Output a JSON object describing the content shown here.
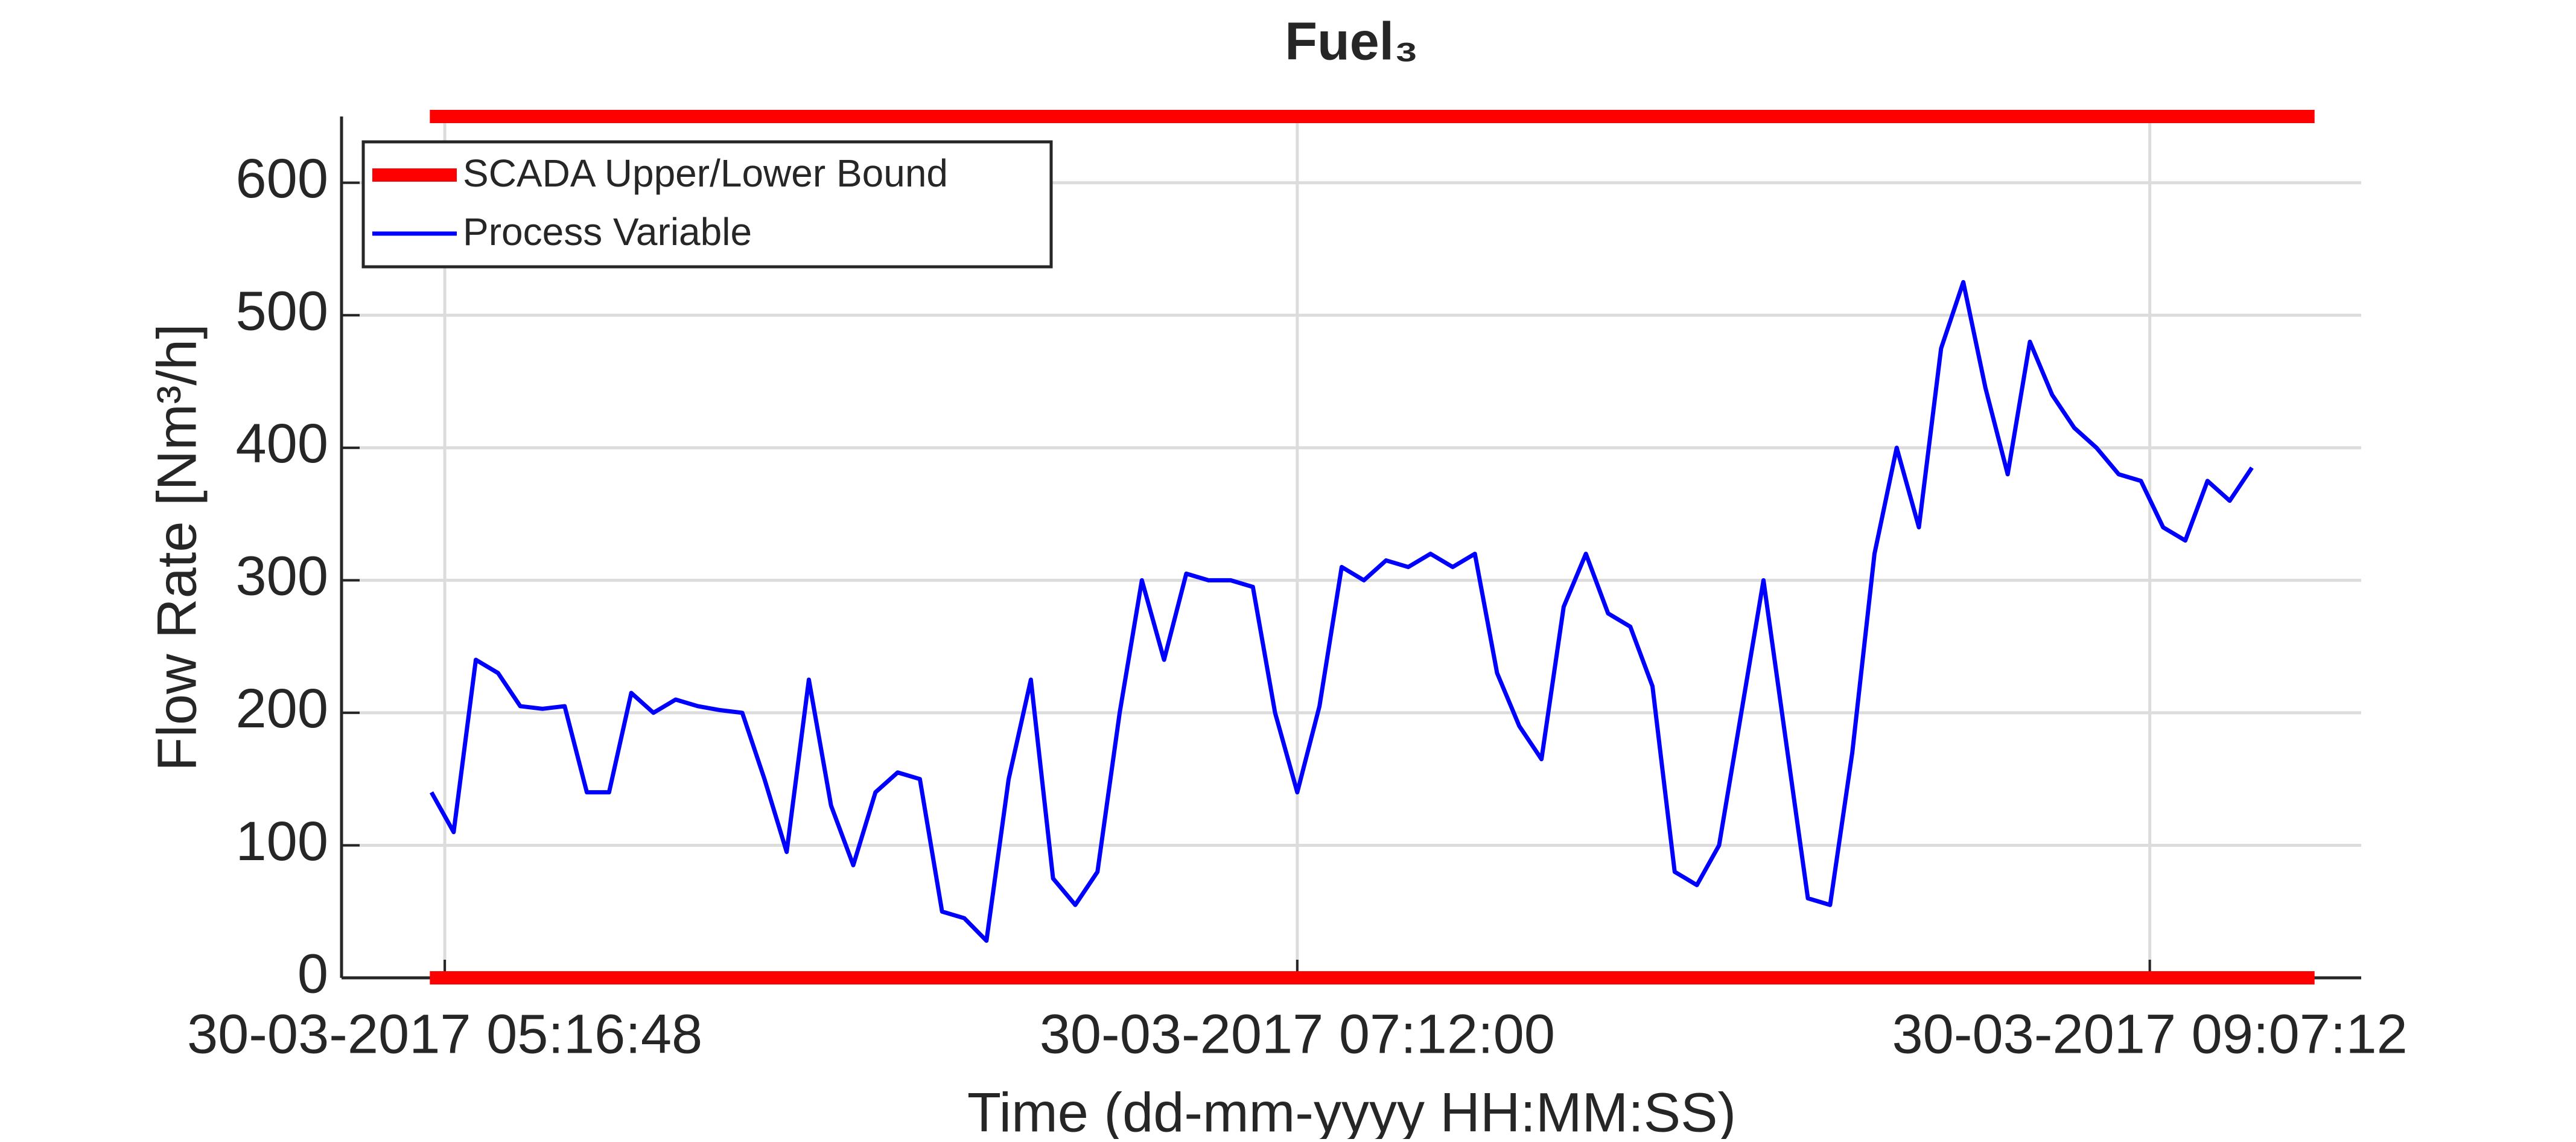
{
  "chart_data": {
    "type": "line",
    "title": "Fuel₃",
    "x_label": "Time (dd-mm-yyyy HH:MM:SS)",
    "y_label": "Flow Rate [Nm³/h]",
    "xlim": [
      "30-03-2017 05:02:51",
      "30-03-2017 09:35:46"
    ],
    "xticks": [
      "30-03-2017 05:16:48",
      "30-03-2017 07:12:00",
      "30-03-2017 09:07:12"
    ],
    "ylim": [
      0,
      650
    ],
    "yticks": [
      0,
      100,
      200,
      300,
      400,
      500,
      600
    ],
    "grid": true,
    "legend": "upper left",
    "bounds": {
      "name": "SCADA Upper/Lower Bound",
      "color": "#ff0000",
      "x": [
        "30-03-2017 05:14:47",
        "30-03-2017 09:29:28"
      ],
      "upper": 650,
      "lower": 0
    },
    "x": [
      "30-03-2017 05:15:00",
      "30-03-2017 05:18:00",
      "30-03-2017 05:21:00",
      "30-03-2017 05:24:00",
      "30-03-2017 05:27:00",
      "30-03-2017 05:30:00",
      "30-03-2017 05:33:00",
      "30-03-2017 05:36:00",
      "30-03-2017 05:39:00",
      "30-03-2017 05:42:00",
      "30-03-2017 05:45:00",
      "30-03-2017 05:48:00",
      "30-03-2017 05:51:00",
      "30-03-2017 05:54:00",
      "30-03-2017 05:57:00",
      "30-03-2017 06:00:00",
      "30-03-2017 06:03:00",
      "30-03-2017 06:06:00",
      "30-03-2017 06:09:00",
      "30-03-2017 06:12:00",
      "30-03-2017 06:15:00",
      "30-03-2017 06:18:00",
      "30-03-2017 06:21:00",
      "30-03-2017 06:24:00",
      "30-03-2017 06:27:00",
      "30-03-2017 06:30:00",
      "30-03-2017 06:33:00",
      "30-03-2017 06:36:00",
      "30-03-2017 06:39:00",
      "30-03-2017 06:42:00",
      "30-03-2017 06:45:00",
      "30-03-2017 06:48:00",
      "30-03-2017 06:51:00",
      "30-03-2017 06:54:00",
      "30-03-2017 06:57:00",
      "30-03-2017 07:00:00",
      "30-03-2017 07:03:00",
      "30-03-2017 07:06:00",
      "30-03-2017 07:09:00",
      "30-03-2017 07:12:00",
      "30-03-2017 07:15:00",
      "30-03-2017 07:18:00",
      "30-03-2017 07:21:00",
      "30-03-2017 07:24:00",
      "30-03-2017 07:27:00",
      "30-03-2017 07:30:00",
      "30-03-2017 07:33:00",
      "30-03-2017 07:36:00",
      "30-03-2017 07:39:00",
      "30-03-2017 07:42:00",
      "30-03-2017 07:45:00",
      "30-03-2017 07:48:00",
      "30-03-2017 07:51:00",
      "30-03-2017 07:54:00",
      "30-03-2017 07:57:00",
      "30-03-2017 08:00:00",
      "30-03-2017 08:03:00",
      "30-03-2017 08:06:00",
      "30-03-2017 08:09:00",
      "30-03-2017 08:12:00",
      "30-03-2017 08:15:00",
      "30-03-2017 08:18:00",
      "30-03-2017 08:21:00",
      "30-03-2017 08:24:00",
      "30-03-2017 08:27:00",
      "30-03-2017 08:30:00",
      "30-03-2017 08:33:00",
      "30-03-2017 08:36:00",
      "30-03-2017 08:39:00",
      "30-03-2017 08:42:00",
      "30-03-2017 08:45:00",
      "30-03-2017 08:48:00",
      "30-03-2017 08:51:00",
      "30-03-2017 08:54:00",
      "30-03-2017 08:57:00",
      "30-03-2017 09:00:00",
      "30-03-2017 09:03:00",
      "30-03-2017 09:06:00",
      "30-03-2017 09:09:00",
      "30-03-2017 09:12:00",
      "30-03-2017 09:15:00",
      "30-03-2017 09:18:00",
      "30-03-2017 09:21:00"
    ],
    "series": [
      {
        "name": "Process Variable",
        "color": "#0000ff",
        "values": [
          140,
          110,
          240,
          230,
          205,
          203,
          205,
          140,
          140,
          215,
          200,
          210,
          205,
          202,
          200,
          150,
          95,
          225,
          130,
          85,
          140,
          155,
          150,
          50,
          45,
          28,
          150,
          225,
          75,
          55,
          80,
          200,
          300,
          240,
          305,
          300,
          300,
          295,
          200,
          140,
          205,
          310,
          300,
          315,
          310,
          320,
          310,
          320,
          230,
          190,
          165,
          280,
          320,
          275,
          265,
          220,
          80,
          70,
          100,
          200,
          300,
          180,
          60,
          55,
          170,
          320,
          400,
          340,
          475,
          525,
          445,
          380,
          480,
          440,
          415,
          400,
          380,
          375,
          340,
          330,
          375,
          360,
          385
        ]
      }
    ]
  }
}
